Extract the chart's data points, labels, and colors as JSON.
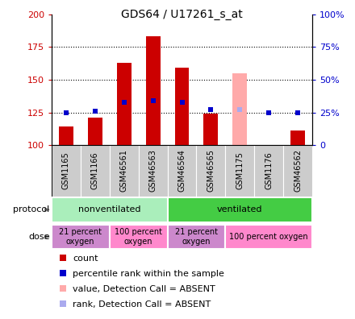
{
  "title": "GDS64 / U17261_s_at",
  "samples": [
    "GSM1165",
    "GSM1166",
    "GSM46561",
    "GSM46563",
    "GSM46564",
    "GSM46565",
    "GSM1175",
    "GSM1176",
    "GSM46562"
  ],
  "count_values": [
    114,
    121,
    163,
    183,
    159,
    124,
    null,
    null,
    111
  ],
  "count_absent": [
    null,
    null,
    null,
    null,
    null,
    null,
    155,
    null,
    null
  ],
  "percentile_values": [
    25,
    26,
    33,
    34,
    33,
    27,
    null,
    25,
    25
  ],
  "percentile_absent": [
    null,
    null,
    null,
    null,
    null,
    null,
    27,
    null,
    null
  ],
  "ylim": [
    100,
    200
  ],
  "y2lim": [
    0,
    100
  ],
  "yticks": [
    100,
    125,
    150,
    175,
    200
  ],
  "y2ticks": [
    0,
    25,
    50,
    75,
    100
  ],
  "dotted_lines": [
    125,
    150,
    175
  ],
  "protocol_groups": [
    {
      "label": "nonventilated",
      "start": 0,
      "end": 4,
      "color": "#aaeebb"
    },
    {
      "label": "ventilated",
      "start": 4,
      "end": 9,
      "color": "#44cc44"
    }
  ],
  "dose_groups": [
    {
      "label": "21 percent\noxygen",
      "start": 0,
      "end": 2,
      "color": "#cc88cc"
    },
    {
      "label": "100 percent\noxygen",
      "start": 2,
      "end": 4,
      "color": "#ff88cc"
    },
    {
      "label": "21 percent\noxygen",
      "start": 4,
      "end": 6,
      "color": "#cc88cc"
    },
    {
      "label": "100 percent oxygen",
      "start": 6,
      "end": 9,
      "color": "#ff88cc"
    }
  ],
  "bar_width": 0.5,
  "count_color": "#cc0000",
  "count_absent_color": "#ffaaaa",
  "percentile_color": "#0000cc",
  "percentile_absent_color": "#aaaaee",
  "base_value": 100,
  "legend_items": [
    {
      "label": "count",
      "color": "#cc0000"
    },
    {
      "label": "percentile rank within the sample",
      "color": "#0000cc"
    },
    {
      "label": "value, Detection Call = ABSENT",
      "color": "#ffaaaa"
    },
    {
      "label": "rank, Detection Call = ABSENT",
      "color": "#aaaaee"
    }
  ],
  "left_tick_color": "#cc0000",
  "right_tick_color": "#0000cc",
  "sample_box_color": "#cccccc",
  "title_fontsize": 10,
  "axis_fontsize": 8,
  "sample_fontsize": 7,
  "legend_fontsize": 8
}
